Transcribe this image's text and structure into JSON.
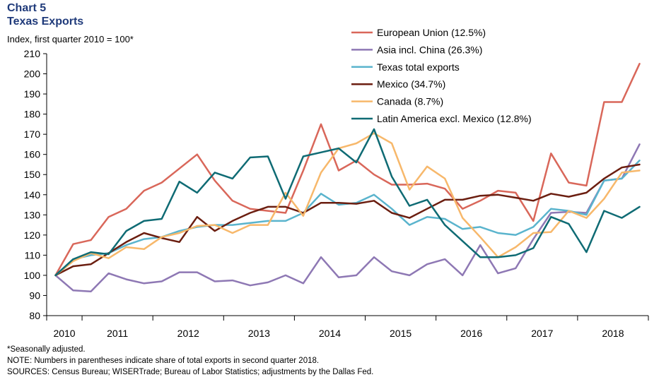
{
  "chart_data": {
    "type": "line",
    "title": "Chart 5",
    "subtitle": "Texas Exports",
    "ylabel": "Index, first quarter 2010 = 100*",
    "xlabel": "",
    "ylim": [
      80,
      210
    ],
    "yticks": [
      80,
      90,
      100,
      110,
      120,
      130,
      140,
      150,
      160,
      170,
      180,
      190,
      200,
      210
    ],
    "year_labels": [
      "2010",
      "2011",
      "2012",
      "2013",
      "2014",
      "2015",
      "2016",
      "2017",
      "2018"
    ],
    "quarters": 34,
    "legend_position": "top-right",
    "series": [
      {
        "name": "European Union (12.5%)",
        "color": "#d9675a",
        "values": [
          100,
          115.5,
          117.5,
          129,
          133,
          142,
          146,
          153,
          160,
          147,
          137,
          133,
          132,
          131,
          152,
          175,
          152,
          157,
          150,
          145,
          145,
          145.5,
          143,
          133,
          137,
          142,
          141,
          127,
          160.5,
          146,
          144.5,
          186,
          186,
          205
        ]
      },
      {
        "name": "Asia incl. China (26.3%)",
        "color": "#8e78b4",
        "values": [
          100,
          92.5,
          92,
          101,
          98,
          96,
          97,
          101.5,
          101.5,
          97,
          97.5,
          95,
          96.5,
          100,
          96,
          109,
          99,
          100,
          109,
          102,
          100,
          105.5,
          108,
          100,
          115,
          101,
          103.5,
          118,
          131,
          131.5,
          131,
          147,
          148,
          165
        ]
      },
      {
        "name": "Texas total exports",
        "color": "#5ab4cd",
        "values": [
          100,
          108,
          110,
          111,
          115,
          118,
          119,
          122,
          124,
          125,
          125,
          126,
          127,
          127,
          131,
          140.5,
          135,
          136,
          140,
          133,
          125,
          129,
          128,
          123,
          124,
          121,
          120,
          124,
          133,
          132,
          130,
          147,
          148,
          157
        ]
      },
      {
        "name": "Mexico (34.7%)",
        "color": "#6b1e10",
        "values": [
          100,
          104.5,
          105.5,
          111,
          116.5,
          121,
          118.5,
          116.5,
          129,
          122,
          127,
          131,
          134,
          134,
          131,
          136,
          136,
          135.5,
          137,
          131,
          128.5,
          133,
          137.5,
          137.5,
          139.5,
          140,
          138.5,
          137,
          140.5,
          139,
          141,
          148,
          153.5,
          155
        ]
      },
      {
        "name": "Canada (8.7%)",
        "color": "#f7b86b",
        "values": [
          100,
          107,
          111,
          108.5,
          114,
          113,
          119,
          121,
          124.5,
          125,
          121,
          125,
          125,
          141,
          129.5,
          151,
          163,
          165.5,
          170.5,
          165.5,
          142.5,
          154,
          148,
          128.5,
          119,
          109,
          114,
          121,
          121.5,
          132,
          128.5,
          138,
          151,
          152
        ]
      },
      {
        "name": "Latin America excl. Mexico (12.8%)",
        "color": "#0f6b74",
        "values": [
          100,
          108,
          111.5,
          110.5,
          122,
          127,
          128,
          146.5,
          141,
          151,
          148,
          158.5,
          159,
          138,
          159,
          161,
          163,
          156,
          172.5,
          149,
          134.5,
          137.5,
          125,
          117,
          109,
          109,
          110,
          113.5,
          129,
          125.5,
          111.5,
          132,
          128.5,
          134
        ]
      }
    ]
  },
  "notes": {
    "seasonal": "*Seasonally adjusted.",
    "note": "NOTE: Numbers in parentheses indicate share of total exports in second quarter 2018.",
    "sources": "SOURCES: Census Bureau;  WISERTrade;  Bureau of Labor Statistics; adjustments by the Dallas Fed."
  }
}
